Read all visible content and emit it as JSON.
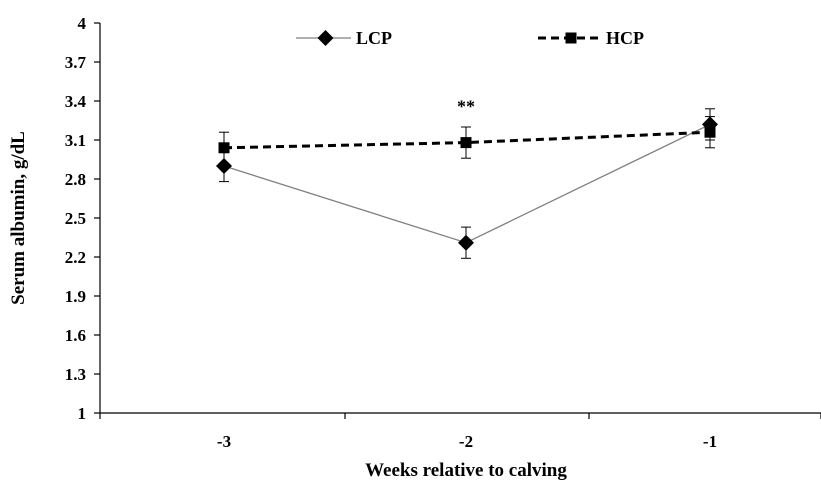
{
  "chart_data": {
    "type": "line",
    "title": "",
    "xlabel": "Weeks relative to calving",
    "ylabel": "Serum albumin, g/dL",
    "categories": [
      "-3",
      "-2",
      "-1"
    ],
    "x": [
      -3,
      -2,
      -1
    ],
    "ylim": [
      1,
      4
    ],
    "yticks": [
      "1",
      "1.3",
      "1.6",
      "1.9",
      "2.2",
      "2.5",
      "2.8",
      "3.1",
      "3.4",
      "3.7",
      "4"
    ],
    "grid": false,
    "legend_position": "top",
    "series": [
      {
        "name": "LCP",
        "marker": "diamond",
        "line_style": "solid",
        "color": "#808080",
        "values": [
          2.9,
          2.31,
          3.22
        ],
        "error": [
          0.12,
          0.12,
          0.12
        ]
      },
      {
        "name": "HCP",
        "marker": "square",
        "line_style": "dashed",
        "color": "#000000",
        "values": [
          3.04,
          3.08,
          3.16
        ],
        "error": [
          0.12,
          0.12,
          0.12
        ]
      }
    ],
    "annotations": [
      {
        "text": "**",
        "x": -2,
        "y": 3.42
      }
    ]
  }
}
